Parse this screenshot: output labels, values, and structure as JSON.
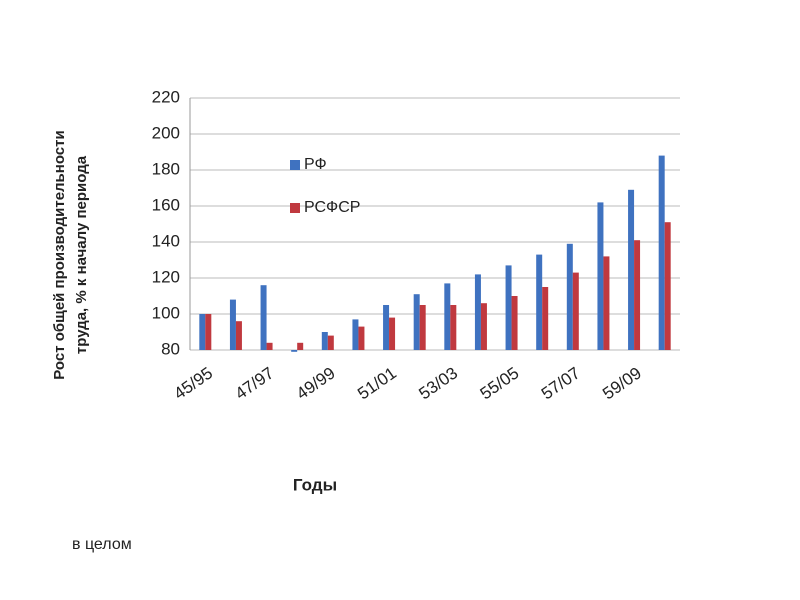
{
  "chart_data": {
    "type": "bar",
    "y_label": [
      "Рост общей производительности",
      "труда, % к началу периода"
    ],
    "x_label": "Годы",
    "categories": [
      "45/95",
      null,
      "47/97",
      null,
      "49/99",
      null,
      "51/01",
      null,
      "53/03",
      null,
      "55/05",
      null,
      "57/07",
      null,
      "59/09",
      null
    ],
    "series": [
      {
        "name": "РФ",
        "color": "#3f72c0",
        "values": [
          100,
          108,
          116,
          79,
          90,
          97,
          105,
          111,
          117,
          122,
          127,
          133,
          139,
          162,
          169,
          188
        ]
      },
      {
        "name": "РСФСР",
        "color": "#c0393f",
        "values": [
          100,
          96,
          84,
          84,
          88,
          93,
          98,
          105,
          105,
          106,
          110,
          115,
          123,
          132,
          141,
          151
        ]
      }
    ],
    "ylim": [
      80,
      220
    ],
    "yticks": [
      80,
      100,
      120,
      140,
      160,
      180,
      200,
      220
    ],
    "grid": true
  },
  "caption": "в целом"
}
